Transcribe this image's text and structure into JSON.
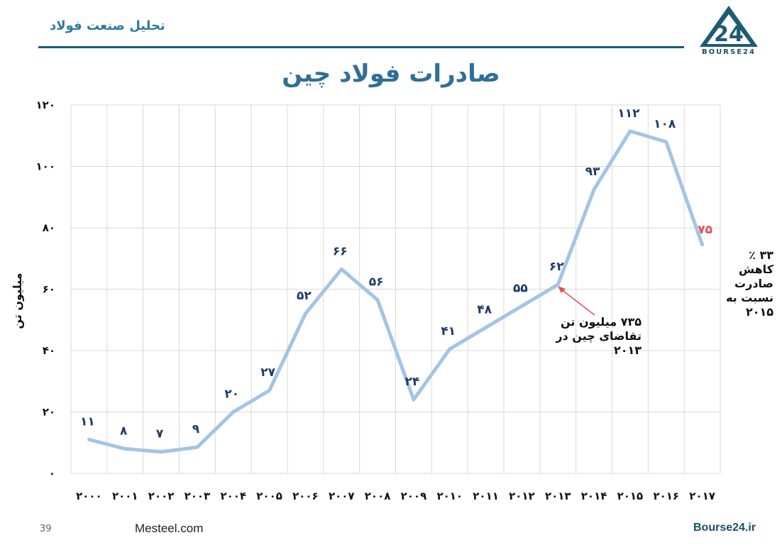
{
  "header": {
    "tag": "تحلیل صنعت فولاد",
    "logo_text": "BOURSE24"
  },
  "footer": {
    "page_number": "39",
    "left": "Mesteel.com",
    "right": "Bourse24.ir"
  },
  "notes": {
    "decline_percent": "۳۳ ٪",
    "decline_line1": "کاهش صادرت",
    "decline_line2": "نسبت به ۲۰۱۵",
    "demand_line1": "۷۳۵ میلیون تن",
    "demand_line2": "تقاضای چین در ۲۰۱۳"
  },
  "colors": {
    "line": "#a3c4e6",
    "data_label": "#1f3b66",
    "highlight_label": "#e0505a",
    "annotation_arrow": "#e0505a",
    "grid": "#d9d9d9"
  },
  "chart_data": {
    "type": "line",
    "title": "صادرات فولاد چین",
    "xlabel": "",
    "ylabel": "میلیون تن",
    "categories": [
      "۲۰۰۰",
      "۲۰۰۱",
      "۲۰۰۲",
      "۲۰۰۳",
      "۲۰۰۴",
      "۲۰۰۵",
      "۲۰۰۶",
      "۲۰۰۷",
      "۲۰۰۸",
      "۲۰۰۹",
      "۲۰۱۰",
      "۲۰۱۱",
      "۲۰۱۲",
      "۲۰۱۳",
      "۲۰۱۴",
      "۲۰۱۵",
      "۲۰۱۶",
      "۲۰۱۷"
    ],
    "values": [
      11,
      8,
      7,
      9,
      20,
      27,
      52,
      66,
      56,
      24,
      41,
      48,
      55,
      62,
      93,
      112,
      108,
      75
    ],
    "plotted_values": [
      11,
      8,
      7,
      8.5,
      20,
      27,
      52,
      66.5,
      56.5,
      24,
      40.5,
      47.5,
      54.5,
      61.5,
      92.5,
      111.5,
      108,
      74.5
    ],
    "data_labels": [
      "۱۱",
      "۸",
      "۷",
      "۹",
      "۲۰",
      "۲۷",
      "۵۲",
      "۶۶",
      "۵۶",
      "۲۴",
      "۴۱",
      "۴۸",
      "۵۵",
      "۶۲",
      "۹۳",
      "۱۱۲",
      "۱۰۸",
      "۷۵"
    ],
    "highlight_index": 17,
    "yticks": [
      0,
      20,
      40,
      60,
      80,
      100,
      120
    ],
    "ytick_labels": [
      "۰",
      "۲۰",
      "۴۰",
      "۶۰",
      "۸۰",
      "۱۰۰",
      "۱۲۰"
    ],
    "ylim": [
      0,
      120
    ],
    "grid": true,
    "legend": "none"
  }
}
